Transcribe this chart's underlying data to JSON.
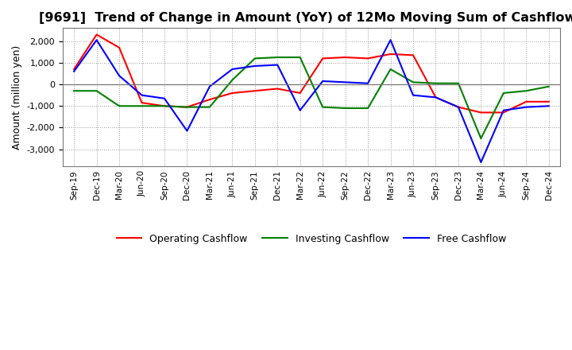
{
  "title": "[9691]  Trend of Change in Amount (YoY) of 12Mo Moving Sum of Cashflows",
  "ylabel": "Amount (million yen)",
  "x_labels": [
    "Sep-19",
    "Dec-19",
    "Mar-20",
    "Jun-20",
    "Sep-20",
    "Dec-20",
    "Mar-21",
    "Jun-21",
    "Sep-21",
    "Dec-21",
    "Mar-22",
    "Jun-22",
    "Sep-22",
    "Dec-22",
    "Mar-23",
    "Jun-23",
    "Sep-23",
    "Dec-23",
    "Mar-24",
    "Jun-24",
    "Sep-24",
    "Dec-24"
  ],
  "operating": [
    700,
    2300,
    1700,
    -850,
    -1000,
    -1050,
    -700,
    -400,
    -300,
    -200,
    -400,
    1200,
    1250,
    1200,
    1400,
    1350,
    -600,
    -1050,
    -1300,
    -1300,
    -800,
    -800
  ],
  "investing": [
    -300,
    -300,
    -1000,
    -1000,
    -1000,
    -1050,
    -1050,
    200,
    1200,
    1250,
    1250,
    -1050,
    -1100,
    -1100,
    700,
    100,
    50,
    50,
    -2500,
    -400,
    -300,
    -100
  ],
  "free": [
    600,
    2050,
    400,
    -500,
    -650,
    -2150,
    -100,
    700,
    850,
    900,
    -1200,
    150,
    100,
    50,
    2050,
    -500,
    -600,
    -1050,
    -3600,
    -1200,
    -1050,
    -1000
  ],
  "line_colors": {
    "operating": "#ff0000",
    "investing": "#008000",
    "free": "#0000ff"
  },
  "background_color": "#ffffff",
  "grid_color": "#999999",
  "ylim": [
    -3800,
    2600
  ],
  "yticks": [
    -3000,
    -2000,
    -1000,
    0,
    1000,
    2000
  ],
  "title_fontsize": 11.5,
  "legend_labels": [
    "Operating Cashflow",
    "Investing Cashflow",
    "Free Cashflow"
  ]
}
